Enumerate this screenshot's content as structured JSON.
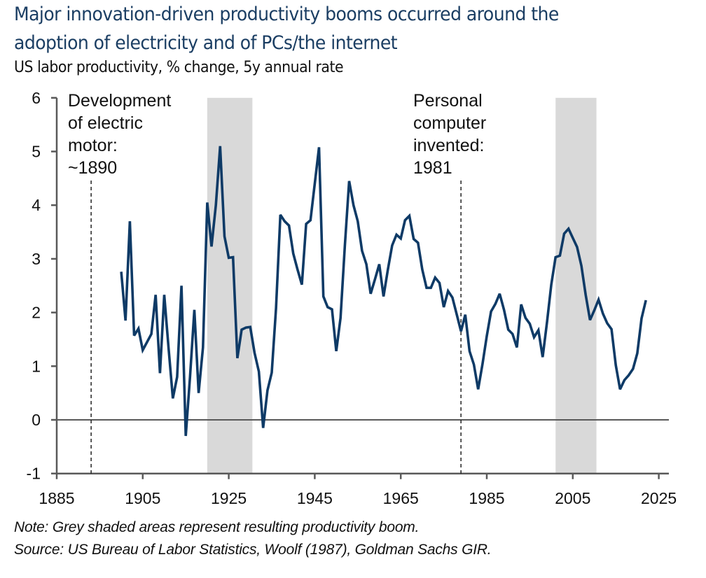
{
  "title_lines": [
    "Major innovation-driven productivity booms occurred around the",
    "adoption of electricity and of PCs/the internet"
  ],
  "subtitle": "US labor productivity, % change, 5y annual rate",
  "footnotes": {
    "note": "Note: Grey shaded areas represent resulting productivity boom.",
    "source": "Source: US Bureau of Labor Statistics, Woolf (1987), Goldman Sachs GIR."
  },
  "colors": {
    "line": "#0e3a66",
    "shade": "#d9d9d9",
    "axis": "#595959",
    "title": "#1b3e63"
  },
  "chart_data": {
    "type": "line",
    "title": "Major innovation-driven productivity booms occurred around the adoption of electricity and of PCs/the internet",
    "subtitle": "US labor productivity, % change, 5y annual rate",
    "xlabel": "",
    "ylabel": "",
    "xlim": [
      1885,
      2029
    ],
    "ylim": [
      -1,
      6
    ],
    "xticks": [
      1885,
      1905,
      1925,
      1945,
      1965,
      1985,
      2005,
      2025
    ],
    "yticks": [
      -1,
      0,
      1,
      2,
      3,
      4,
      5,
      6
    ],
    "xtick_labels": [
      "1885",
      "1905",
      "1925",
      "1945",
      "1965",
      "1985",
      "2005",
      "2025"
    ],
    "ytick_labels": [
      "-1",
      "0",
      "1",
      "2",
      "3",
      "4",
      "5",
      "6"
    ],
    "grid": false,
    "legend": "none",
    "shaded_periods": [
      {
        "start": 1920,
        "end": 1930.5
      },
      {
        "start": 2001,
        "end": 2010.5
      }
    ],
    "annotations": [
      {
        "x": 1893,
        "lines": [
          "Development",
          "of electric",
          "motor:",
          "~1890"
        ]
      },
      {
        "x": 1979,
        "lines": [
          "Personal",
          "computer",
          "invented:",
          "1981"
        ]
      }
    ],
    "series": [
      {
        "name": "US labor productivity, % change, 5y annual rate",
        "x": [
          1900,
          1901,
          1902,
          1903,
          1904,
          1905,
          1907,
          1908,
          1909,
          1910,
          1911,
          1912,
          1913,
          1914,
          1915,
          1916,
          1917,
          1918,
          1919,
          1920,
          1921,
          1922,
          1923,
          1924,
          1925,
          1926,
          1927,
          1928,
          1929,
          1930,
          1931,
          1932,
          1933,
          1934,
          1935,
          1936,
          1937,
          1938,
          1939,
          1940,
          1941,
          1942,
          1943,
          1944,
          1945,
          1946,
          1947,
          1948,
          1949,
          1950,
          1951,
          1952,
          1953,
          1954,
          1955,
          1956,
          1957,
          1958,
          1959,
          1960,
          1961,
          1962,
          1963,
          1964,
          1965,
          1966,
          1967,
          1968,
          1969,
          1970,
          1971,
          1972,
          1973,
          1974,
          1975,
          1976,
          1977,
          1978,
          1979,
          1980,
          1981,
          1982,
          1983,
          1984,
          1985,
          1986,
          1987,
          1988,
          1989,
          1990,
          1991,
          1992,
          1993,
          1994,
          1995,
          1996,
          1997,
          1998,
          1999,
          2000,
          2001,
          2002,
          2003,
          2004,
          2005,
          2006,
          2007,
          2008,
          2009,
          2010,
          2011,
          2012,
          2013,
          2014,
          2015,
          2016,
          2017,
          2018,
          2019,
          2020,
          2021,
          2022
        ],
        "values": [
          2.76,
          1.85,
          3.7,
          1.57,
          1.7,
          1.3,
          1.6,
          2.33,
          0.87,
          2.33,
          1.35,
          0.4,
          0.8,
          2.5,
          -0.3,
          0.8,
          2.05,
          0.5,
          1.35,
          4.05,
          3.23,
          4.0,
          5.1,
          3.42,
          3.02,
          3.03,
          1.15,
          1.68,
          1.72,
          1.73,
          1.25,
          0.9,
          -0.15,
          0.55,
          0.88,
          2.08,
          3.82,
          3.7,
          3.62,
          3.1,
          2.8,
          2.52,
          3.65,
          3.72,
          4.4,
          5.08,
          2.3,
          2.1,
          2.06,
          1.28,
          1.9,
          3.25,
          4.45,
          4.0,
          3.7,
          3.15,
          2.9,
          2.35,
          2.62,
          2.9,
          2.3,
          2.8,
          3.25,
          3.45,
          3.38,
          3.72,
          3.8,
          3.37,
          3.3,
          2.8,
          2.46,
          2.46,
          2.65,
          2.55,
          2.1,
          2.4,
          2.28,
          1.97,
          1.65,
          1.96,
          1.28,
          1.03,
          0.57,
          1.04,
          1.56,
          2.02,
          2.16,
          2.35,
          2.05,
          1.68,
          1.6,
          1.35,
          2.15,
          1.9,
          1.79,
          1.54,
          1.67,
          1.17,
          1.82,
          2.52,
          3.03,
          3.06,
          3.47,
          3.56,
          3.39,
          3.22,
          2.87,
          2.33,
          1.86,
          2.04,
          2.24,
          1.98,
          1.8,
          1.69,
          1.02,
          0.57,
          0.74,
          0.83,
          0.95,
          1.24,
          1.89,
          2.23
        ]
      }
    ]
  }
}
